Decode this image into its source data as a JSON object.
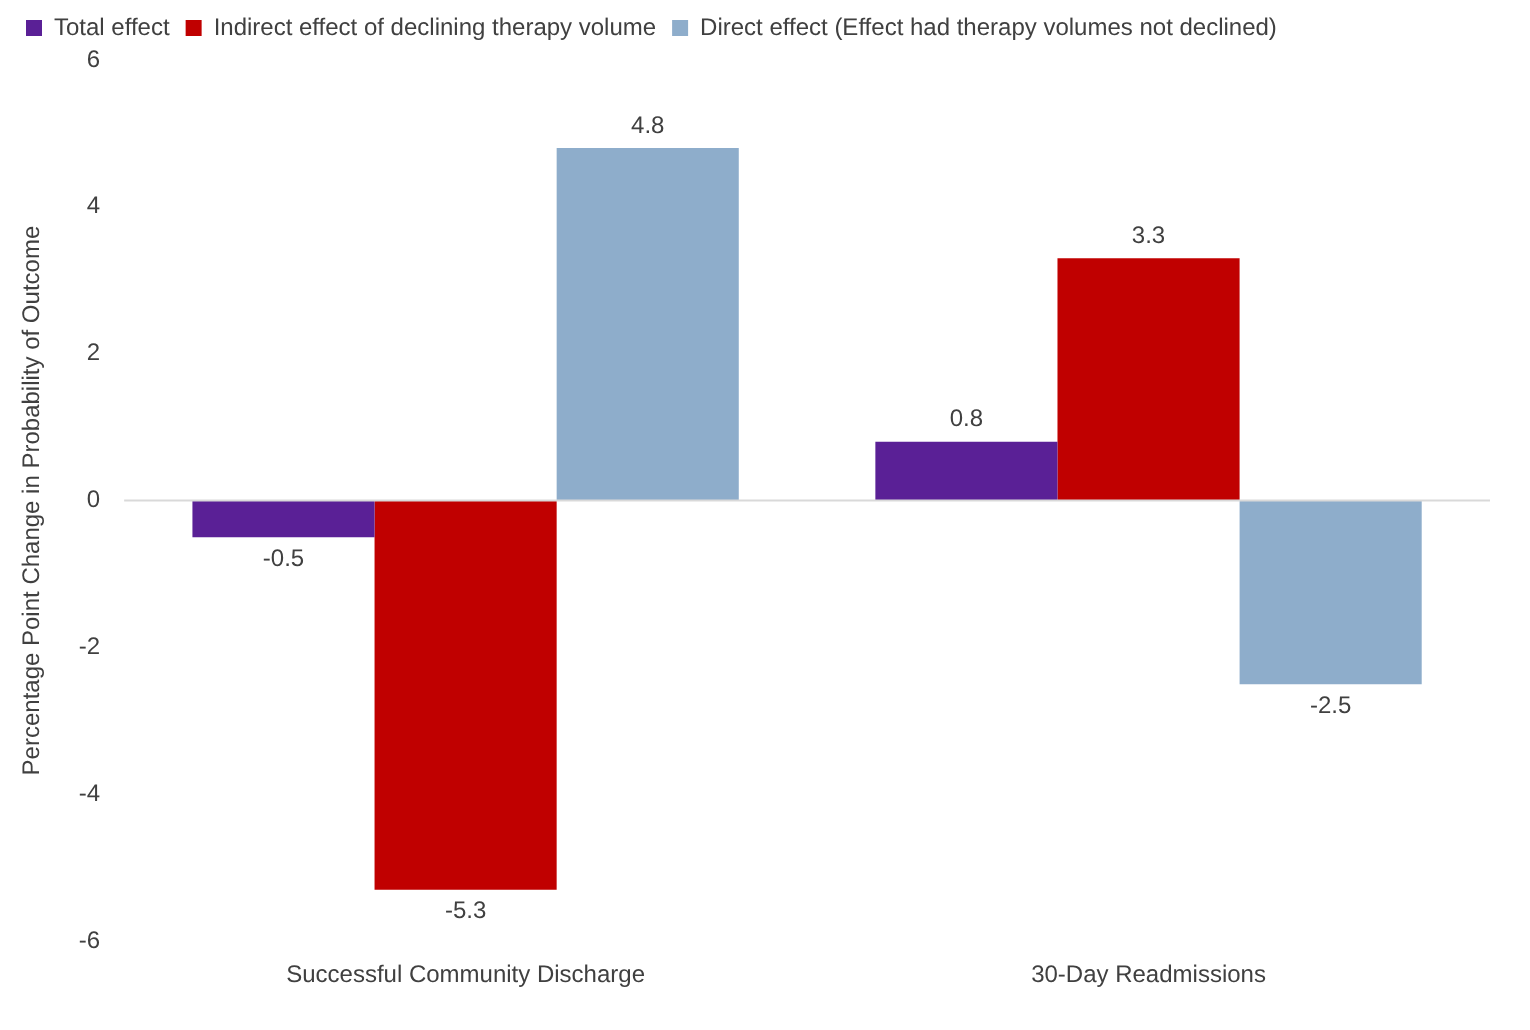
{
  "chart_data": {
    "type": "bar",
    "ylabel": "Percentage Point Change in Probability of Outcome",
    "categories": [
      "Successful Community Discharge",
      "30-Day Readmissions"
    ],
    "series": [
      {
        "name": "Total effect",
        "color": "#5a2096",
        "values": [
          -0.5,
          0.8
        ]
      },
      {
        "name": "Indirect effect of declining therapy volume",
        "color": "#c00000",
        "values": [
          -5.3,
          3.3
        ]
      },
      {
        "name": "Direct effect (Effect had therapy volumes not declined)",
        "color": "#8eadcb",
        "values": [
          4.8,
          -2.5
        ]
      }
    ],
    "ref_lines": [
      {
        "axis": "y",
        "value": 0,
        "color": "#d9d9d9"
      }
    ],
    "ylim": [
      -6,
      6
    ],
    "yticks": [
      -6,
      -4,
      -2,
      0,
      2,
      4,
      6
    ],
    "grid": false,
    "legend": "top left",
    "data_labels": true
  }
}
